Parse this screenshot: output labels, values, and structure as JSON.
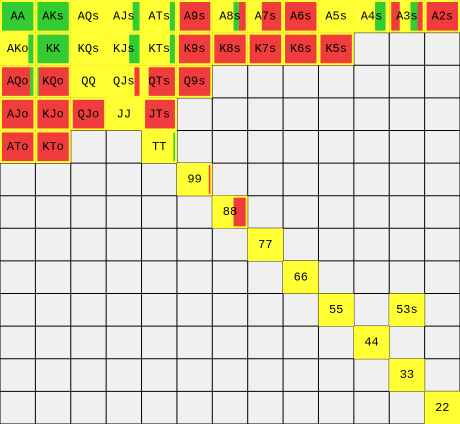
{
  "grid": {
    "rows": [
      [
        {
          "label": "AA",
          "fill": [
            [
              "#33cc33",
              1
            ]
          ]
        },
        {
          "label": "AKs",
          "fill": [
            [
              "#33cc33",
              1
            ]
          ]
        },
        {
          "label": "AQs",
          "fill": [
            [
              "#ffff33",
              1
            ]
          ]
        },
        {
          "label": "AJs",
          "fill": [
            [
              "#ffff33",
              0.75
            ],
            [
              "#33cc33",
              0.25
            ]
          ]
        },
        {
          "label": "ATs",
          "fill": [
            [
              "#ffff33",
              0.8
            ],
            [
              "#33cc33",
              0.2
            ]
          ]
        },
        {
          "label": "A9s",
          "fill": [
            [
              "#ffff33",
              0.08
            ],
            [
              "#f03c3c",
              0.92
            ]
          ]
        },
        {
          "label": "A8s",
          "fill": [
            [
              "#ffff33",
              0.6
            ],
            [
              "#33cc33",
              0.15
            ],
            [
              "#f03c3c",
              0.25
            ]
          ]
        },
        {
          "label": "A7s",
          "fill": [
            [
              "#ffff33",
              0.4
            ],
            [
              "#f03c3c",
              0.6
            ]
          ]
        },
        {
          "label": "A6s",
          "fill": [
            [
              "#f03c3c",
              1
            ]
          ]
        },
        {
          "label": "A5s",
          "fill": [
            [
              "#ffff33",
              1
            ]
          ]
        },
        {
          "label": "A4s",
          "fill": [
            [
              "#ffff33",
              0.6
            ],
            [
              "#33cc33",
              0.3
            ],
            [
              "#ffff33",
              0.1
            ]
          ]
        },
        {
          "label": "A3s",
          "fill": [
            [
              "#f03c3c",
              0.3
            ],
            [
              "#ffff33",
              0.3
            ],
            [
              "#33cc33",
              0.2
            ],
            [
              "#f03c3c",
              0.2
            ]
          ]
        },
        {
          "label": "A2s",
          "fill": [
            [
              "#f03c3c",
              1
            ]
          ]
        }
      ],
      [
        {
          "label": "AKo",
          "fill": [
            [
              "#ffff33",
              0.8
            ],
            [
              "#33cc33",
              0.2
            ]
          ]
        },
        {
          "label": "KK",
          "fill": [
            [
              "#33cc33",
              1
            ]
          ]
        },
        {
          "label": "KQs",
          "fill": [
            [
              "#ffff33",
              1
            ]
          ]
        },
        {
          "label": "KJs",
          "fill": [
            [
              "#ffff33",
              0.65
            ],
            [
              "#33cc33",
              0.35
            ]
          ]
        },
        {
          "label": "KTs",
          "fill": [
            [
              "#ffff33",
              0.8
            ],
            [
              "#33cc33",
              0.2
            ]
          ]
        },
        {
          "label": "K9s",
          "fill": [
            [
              "#f03c3c",
              1
            ]
          ]
        },
        {
          "label": "K8s",
          "fill": [
            [
              "#f03c3c",
              1
            ]
          ]
        },
        {
          "label": "K7s",
          "fill": [
            [
              "#f03c3c",
              1
            ]
          ]
        },
        {
          "label": "K6s",
          "fill": [
            [
              "#f03c3c",
              1
            ]
          ]
        },
        {
          "label": "K5s",
          "fill": [
            [
              "#f03c3c",
              1
            ]
          ]
        },
        null,
        null,
        null
      ],
      [
        {
          "label": "AQo",
          "fill": [
            [
              "#f03c3c",
              0.85
            ],
            [
              "#33cc33",
              0.15
            ]
          ]
        },
        {
          "label": "KQo",
          "fill": [
            [
              "#33cc33",
              0.1
            ],
            [
              "#f03c3c",
              0.9
            ]
          ]
        },
        {
          "label": "QQ",
          "fill": [
            [
              "#ffff33",
              1
            ]
          ]
        },
        {
          "label": "QJs",
          "fill": [
            [
              "#ffff33",
              0.8
            ],
            [
              "#f03c3c",
              0.2
            ]
          ]
        },
        {
          "label": "QTs",
          "fill": [
            [
              "#ffff33",
              0.2
            ],
            [
              "#f03c3c",
              0.8
            ]
          ]
        },
        {
          "label": "Q9s",
          "fill": [
            [
              "#f03c3c",
              1
            ]
          ]
        },
        null,
        null,
        null,
        null,
        null,
        null,
        null
      ],
      [
        {
          "label": "AJo",
          "fill": [
            [
              "#f03c3c",
              1
            ]
          ]
        },
        {
          "label": "KJo",
          "fill": [
            [
              "#f03c3c",
              1
            ]
          ]
        },
        {
          "label": "QJo",
          "fill": [
            [
              "#f03c3c",
              1
            ]
          ]
        },
        {
          "label": "JJ",
          "fill": [
            [
              "#ffff33",
              1
            ]
          ]
        },
        {
          "label": "JTs",
          "fill": [
            [
              "#ffff33",
              0.1
            ],
            [
              "#f03c3c",
              0.9
            ]
          ]
        },
        null,
        null,
        null,
        null,
        null,
        null,
        null,
        null
      ],
      [
        {
          "label": "ATo",
          "fill": [
            [
              "#f03c3c",
              1
            ]
          ]
        },
        {
          "label": "KTo",
          "fill": [
            [
              "#f03c3c",
              1
            ]
          ]
        },
        null,
        null,
        {
          "label": "TT",
          "fill": [
            [
              "#ffff33",
              0.9
            ],
            [
              "#33cc33",
              0.1
            ]
          ]
        },
        null,
        null,
        null,
        null,
        null,
        null,
        null,
        null
      ],
      [
        null,
        null,
        null,
        null,
        null,
        {
          "label": "99",
          "fill": [
            [
              "#ffff33",
              0.9
            ],
            [
              "#f03c3c",
              0.1
            ]
          ]
        },
        null,
        null,
        null,
        null,
        null,
        null,
        null
      ],
      [
        null,
        null,
        null,
        null,
        null,
        null,
        {
          "label": "88",
          "fill": [
            [
              "#ffff33",
              0.6
            ],
            [
              "#f03c3c",
              0.4
            ]
          ]
        },
        null,
        null,
        null,
        null,
        null,
        null
      ],
      [
        null,
        null,
        null,
        null,
        null,
        null,
        null,
        {
          "label": "77",
          "fill": [
            [
              "#ffff33",
              1
            ]
          ]
        },
        null,
        null,
        null,
        null,
        null
      ],
      [
        null,
        null,
        null,
        null,
        null,
        null,
        null,
        null,
        {
          "label": "66",
          "fill": [
            [
              "#ffff33",
              1
            ]
          ]
        },
        null,
        null,
        null,
        null
      ],
      [
        null,
        null,
        null,
        null,
        null,
        null,
        null,
        null,
        null,
        {
          "label": "55",
          "fill": [
            [
              "#ffff33",
              1
            ]
          ]
        },
        null,
        {
          "label": "53s",
          "fill": [
            [
              "#ffff33",
              1
            ]
          ]
        },
        null
      ],
      [
        null,
        null,
        null,
        null,
        null,
        null,
        null,
        null,
        null,
        null,
        {
          "label": "44",
          "fill": [
            [
              "#ffff33",
              1
            ]
          ]
        },
        null,
        null
      ],
      [
        null,
        null,
        null,
        null,
        null,
        null,
        null,
        null,
        null,
        null,
        null,
        {
          "label": "33",
          "fill": [
            [
              "#ffff33",
              1
            ]
          ]
        },
        null
      ],
      [
        null,
        null,
        null,
        null,
        null,
        null,
        null,
        null,
        null,
        null,
        null,
        null,
        {
          "label": "22",
          "fill": [
            [
              "#ffff33",
              1
            ]
          ]
        }
      ]
    ]
  }
}
